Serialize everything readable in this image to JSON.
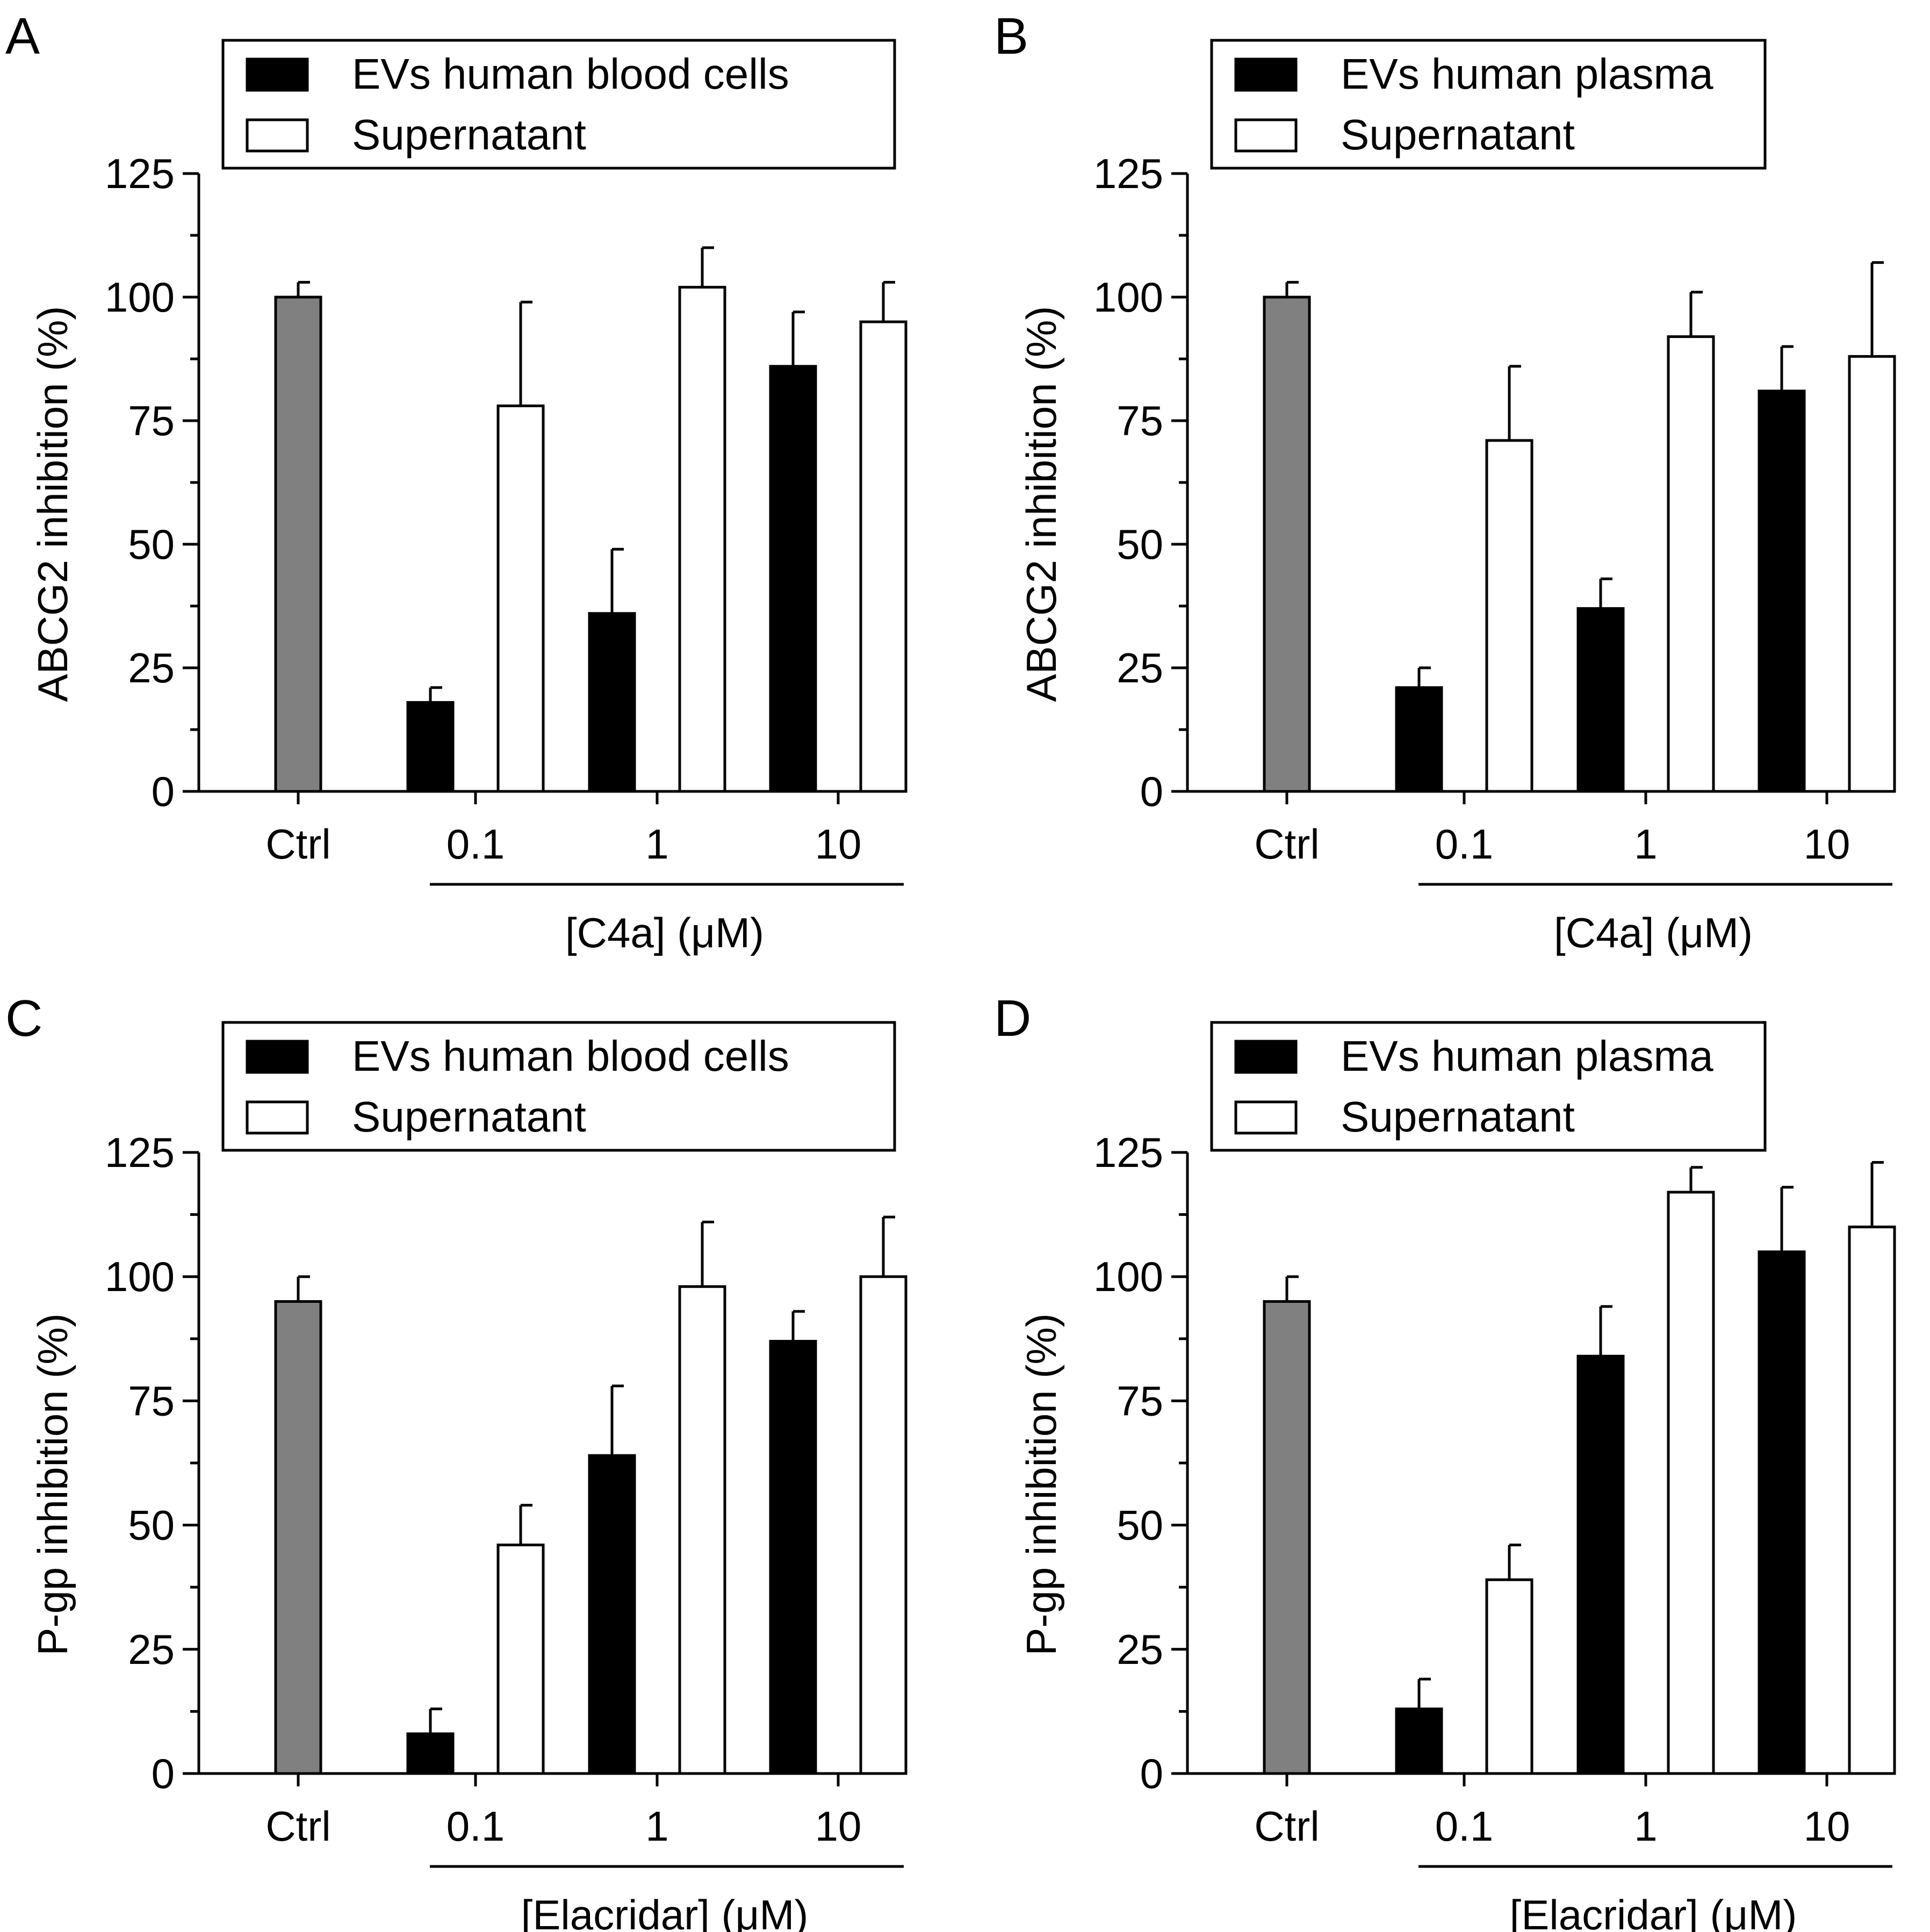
{
  "chart_data": [
    {
      "panel": "A",
      "type": "bar",
      "ylabel": "ABCG2 inhibition (%)",
      "xlabel": "[C4a] (μM)",
      "ylim": [
        0,
        125
      ],
      "yticks": [
        "0",
        "25",
        "50",
        "75",
        "100",
        "125"
      ],
      "control": {
        "label": "Ctrl",
        "value": 100,
        "error": 3,
        "color": "#808080"
      },
      "categories": [
        "0.1",
        "1",
        "10"
      ],
      "series": [
        {
          "name": "EVs human blood cells",
          "color": "#000000",
          "values": [
            18,
            36,
            86
          ],
          "errors": [
            3,
            13,
            11
          ]
        },
        {
          "name": "Supernatant",
          "color": "#ffffff",
          "values": [
            78,
            102,
            95
          ],
          "errors": [
            21,
            8,
            8
          ]
        }
      ]
    },
    {
      "panel": "B",
      "type": "bar",
      "ylabel": "ABCG2 inhibition (%)",
      "xlabel": "[C4a] (μM)",
      "ylim": [
        0,
        125
      ],
      "yticks": [
        "0",
        "25",
        "50",
        "75",
        "100",
        "125"
      ],
      "control": {
        "label": "Ctrl",
        "value": 100,
        "error": 3,
        "color": "#808080"
      },
      "categories": [
        "0.1",
        "1",
        "10"
      ],
      "series": [
        {
          "name": "EVs human plasma",
          "color": "#000000",
          "values": [
            21,
            37,
            81
          ],
          "errors": [
            4,
            6,
            9
          ]
        },
        {
          "name": "Supernatant",
          "color": "#ffffff",
          "values": [
            71,
            92,
            88
          ],
          "errors": [
            15,
            9,
            19
          ]
        }
      ]
    },
    {
      "panel": "C",
      "type": "bar",
      "ylabel": "P-gp inhibition (%)",
      "xlabel": "[Elacridar] (μM)",
      "ylim": [
        0,
        125
      ],
      "yticks": [
        "0",
        "25",
        "50",
        "75",
        "100",
        "125"
      ],
      "control": {
        "label": "Ctrl",
        "value": 95,
        "error": 5,
        "color": "#808080"
      },
      "categories": [
        "0.1",
        "1",
        "10"
      ],
      "series": [
        {
          "name": "EVs human blood cells",
          "color": "#000000",
          "values": [
            8,
            64,
            87
          ],
          "errors": [
            5,
            14,
            6
          ]
        },
        {
          "name": "Supernatant",
          "color": "#ffffff",
          "values": [
            46,
            98,
            100
          ],
          "errors": [
            8,
            13,
            12
          ]
        }
      ]
    },
    {
      "panel": "D",
      "type": "bar",
      "ylabel": "P-gp inhibition (%)",
      "xlabel": "[Elacridar] (μM)",
      "ylim": [
        0,
        125
      ],
      "yticks": [
        "0",
        "25",
        "50",
        "75",
        "100",
        "125"
      ],
      "control": {
        "label": "Ctrl",
        "value": 95,
        "error": 5,
        "color": "#808080"
      },
      "categories": [
        "0.1",
        "1",
        "10"
      ],
      "series": [
        {
          "name": "EVs human plasma",
          "color": "#000000",
          "values": [
            13,
            84,
            105
          ],
          "errors": [
            6,
            10,
            13
          ]
        },
        {
          "name": "Supernatant",
          "color": "#ffffff",
          "values": [
            39,
            117,
            110
          ],
          "errors": [
            7,
            5,
            13
          ]
        }
      ]
    }
  ]
}
